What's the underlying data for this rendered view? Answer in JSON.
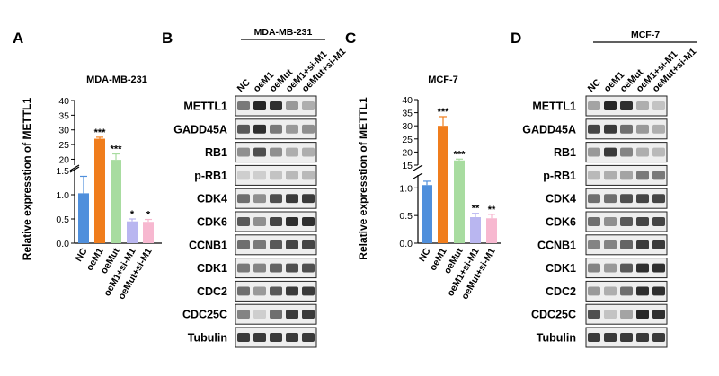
{
  "panel_letters": [
    "A",
    "B",
    "C",
    "D"
  ],
  "colors": {
    "NC": "#4f8fdc",
    "oeM1": "#f07d1c",
    "oeMut": "#a8dca0",
    "oeM1_si": "#b9b6f0",
    "oeMut_si": "#f7b8d0",
    "blot_dark": "#1a1a1a"
  },
  "chart_data": [
    {
      "panel": "A",
      "type": "bar",
      "title": "MDA-MB-231",
      "ylabel": "Relative expresstion of METTL1",
      "categories": [
        "NC",
        "oeM1",
        "oeMut",
        "oeM1+si-M1",
        "oeMut+si-M1"
      ],
      "values": [
        1.03,
        27.0,
        19.8,
        0.45,
        0.44
      ],
      "errors": [
        0.35,
        0.5,
        2.0,
        0.05,
        0.05
      ],
      "significance": [
        "",
        "***",
        "***",
        "*",
        "*"
      ],
      "axis_break": true,
      "lower_yticks": [
        "0.0",
        "0.5",
        "1.0",
        "1.5"
      ],
      "upper_yticks": [
        "20",
        "25",
        "30",
        "35",
        "40"
      ]
    },
    {
      "panel": "C",
      "type": "bar",
      "title": "MCF-7",
      "ylabel": "Relative expresstion of METTL1",
      "categories": [
        "NC",
        "oeM1",
        "oeMut",
        "oeM1+si-M1",
        "oeMut+si-M1"
      ],
      "values": [
        1.05,
        30.0,
        16.8,
        0.47,
        0.45
      ],
      "errors": [
        0.07,
        3.5,
        0.5,
        0.07,
        0.07
      ],
      "significance": [
        "",
        "***",
        "***",
        "**",
        "**"
      ],
      "axis_break": true,
      "lower_yticks": [
        "0.0",
        "0.5",
        "1.0"
      ],
      "upper_yticks": [
        "15",
        "20",
        "25",
        "30",
        "35",
        "40"
      ]
    }
  ],
  "blots": [
    {
      "panel": "B",
      "cell_line": "MDA-MB-231",
      "lanes": [
        "NC",
        "oeM1",
        "oeMut",
        "oeM1+si-M1",
        "oeMut+si-M1"
      ],
      "rows": [
        {
          "label": "METTL1",
          "intensity": [
            0.55,
            0.95,
            0.9,
            0.4,
            0.3
          ]
        },
        {
          "label": "GADD45A",
          "intensity": [
            0.7,
            0.9,
            0.55,
            0.4,
            0.45
          ]
        },
        {
          "label": "RB1",
          "intensity": [
            0.45,
            0.75,
            0.45,
            0.3,
            0.3
          ]
        },
        {
          "label": "p-RB1",
          "intensity": [
            0.15,
            0.15,
            0.2,
            0.25,
            0.25
          ]
        },
        {
          "label": "CDK4",
          "intensity": [
            0.6,
            0.45,
            0.75,
            0.85,
            0.85
          ]
        },
        {
          "label": "CDK6",
          "intensity": [
            0.7,
            0.45,
            0.8,
            0.9,
            0.9
          ]
        },
        {
          "label": "CCNB1",
          "intensity": [
            0.6,
            0.55,
            0.7,
            0.8,
            0.8
          ]
        },
        {
          "label": "CDK1",
          "intensity": [
            0.55,
            0.5,
            0.65,
            0.75,
            0.75
          ]
        },
        {
          "label": "CDC2",
          "intensity": [
            0.6,
            0.4,
            0.7,
            0.85,
            0.85
          ]
        },
        {
          "label": "CDC25C",
          "intensity": [
            0.5,
            0.15,
            0.6,
            0.85,
            0.85
          ]
        },
        {
          "label": "Tubulin",
          "intensity": [
            0.85,
            0.85,
            0.85,
            0.85,
            0.85
          ]
        }
      ]
    },
    {
      "panel": "D",
      "cell_line": "MCF-7",
      "lanes": [
        "NC",
        "oeM1",
        "oeMut",
        "oeM1+si-M1",
        "oeMut+si-M1"
      ],
      "rows": [
        {
          "label": "METTL1",
          "intensity": [
            0.35,
            0.95,
            0.9,
            0.3,
            0.2
          ]
        },
        {
          "label": "GADD45A",
          "intensity": [
            0.8,
            0.85,
            0.6,
            0.4,
            0.3
          ]
        },
        {
          "label": "RB1",
          "intensity": [
            0.4,
            0.85,
            0.5,
            0.3,
            0.25
          ]
        },
        {
          "label": "p-RB1",
          "intensity": [
            0.25,
            0.3,
            0.35,
            0.55,
            0.55
          ]
        },
        {
          "label": "CDK4",
          "intensity": [
            0.6,
            0.6,
            0.75,
            0.8,
            0.8
          ]
        },
        {
          "label": "CDK6",
          "intensity": [
            0.6,
            0.45,
            0.7,
            0.8,
            0.8
          ]
        },
        {
          "label": "CCNB1",
          "intensity": [
            0.5,
            0.5,
            0.65,
            0.85,
            0.85
          ]
        },
        {
          "label": "CDK1",
          "intensity": [
            0.5,
            0.4,
            0.7,
            0.9,
            0.9
          ]
        },
        {
          "label": "CDC2",
          "intensity": [
            0.4,
            0.3,
            0.6,
            0.9,
            0.9
          ]
        },
        {
          "label": "CDC25C",
          "intensity": [
            0.75,
            0.2,
            0.35,
            0.95,
            0.9
          ]
        },
        {
          "label": "Tubulin",
          "intensity": [
            0.85,
            0.85,
            0.85,
            0.85,
            0.85
          ]
        }
      ]
    }
  ]
}
